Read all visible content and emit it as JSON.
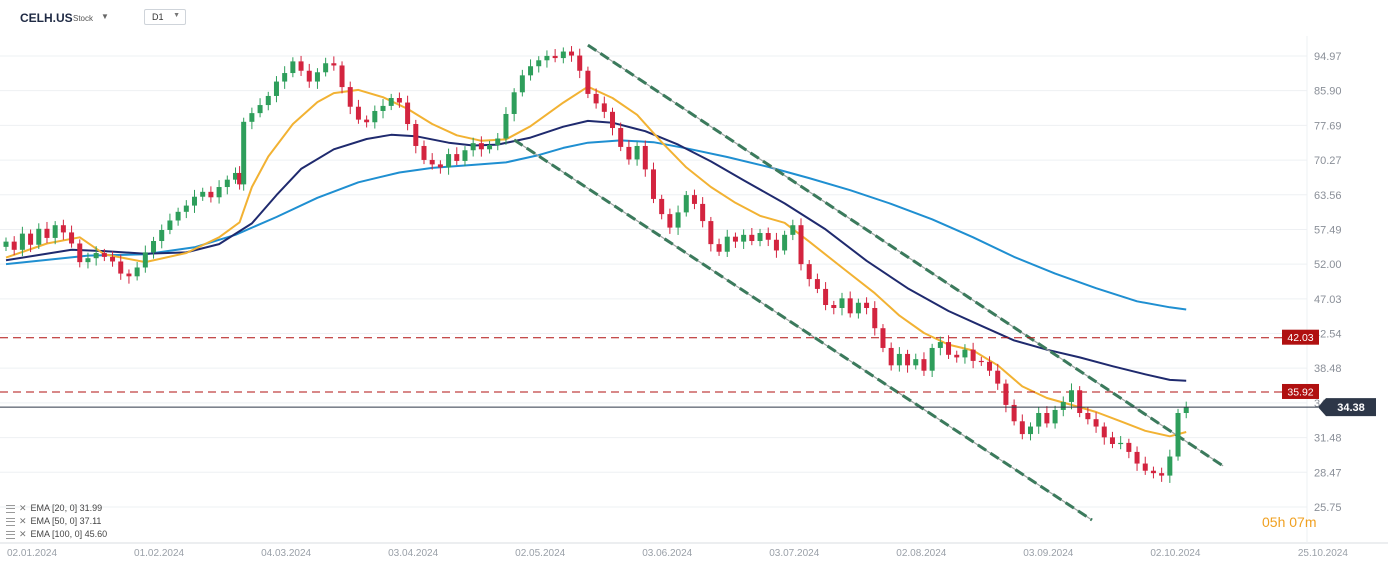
{
  "header": {
    "symbol": "CELH.US",
    "type": "Stock",
    "timeframe": "D1"
  },
  "countdown": {
    "hours": "05",
    "h_unit": "h",
    "minutes": "07",
    "m_unit": "m"
  },
  "indicators": [
    {
      "label": "EMA [20, 0] 31.99",
      "color": "#f2b233"
    },
    {
      "label": "EMA [50, 0] 37.11",
      "color": "#1f2a6e"
    },
    {
      "label": "EMA [100, 0] 45.60",
      "color": "#1f8fd1"
    }
  ],
  "chart_data": {
    "type": "candlestick",
    "y_ticks": [
      "94.97",
      "85.90",
      "77.69",
      "70.27",
      "63.56",
      "57.49",
      "52.00",
      "47.03",
      "42.54",
      "38.48",
      "34.81",
      "31.48",
      "28.47",
      "25.75"
    ],
    "x_ticks": [
      "02.01.2024",
      "01.02.2024",
      "04.03.2024",
      "03.04.2024",
      "02.05.2024",
      "03.06.2024",
      "03.07.2024",
      "02.08.2024",
      "03.09.2024",
      "02.10.2024",
      "25.10.2024"
    ],
    "current_price": "34.38",
    "price_level_lines": [
      "42.03",
      "35.92"
    ],
    "colors": {
      "up": "#2e9e5b",
      "down": "#d3243f",
      "level": "#b01010",
      "last_price_bg": "#2d3748"
    },
    "closes": [
      [
        0,
        55.5
      ],
      [
        2,
        54.2
      ],
      [
        4,
        56.8
      ],
      [
        6,
        55.0
      ],
      [
        8,
        57.6
      ],
      [
        10,
        56.1
      ],
      [
        12,
        58.2
      ],
      [
        14,
        57.0
      ],
      [
        16,
        55.2
      ],
      [
        18,
        52.3
      ],
      [
        20,
        52.9
      ],
      [
        22,
        53.7
      ],
      [
        24,
        53.1
      ],
      [
        26,
        52.4
      ],
      [
        28,
        50.6
      ],
      [
        30,
        50.2
      ],
      [
        32,
        51.5
      ],
      [
        34,
        53.8
      ],
      [
        36,
        55.6
      ],
      [
        38,
        57.4
      ],
      [
        40,
        59.0
      ],
      [
        42,
        60.5
      ],
      [
        44,
        61.6
      ],
      [
        46,
        63.2
      ],
      [
        48,
        64.1
      ],
      [
        50,
        63.1
      ],
      [
        52,
        65.0
      ],
      [
        54,
        66.4
      ],
      [
        56,
        67.7
      ],
      [
        57,
        65.5
      ],
      [
        58,
        78.5
      ],
      [
        60,
        80.5
      ],
      [
        62,
        82.4
      ],
      [
        64,
        84.6
      ],
      [
        66,
        88.2
      ],
      [
        68,
        90.4
      ],
      [
        70,
        93.5
      ],
      [
        72,
        91.0
      ],
      [
        74,
        88.2
      ],
      [
        76,
        90.6
      ],
      [
        78,
        93.0
      ],
      [
        80,
        92.4
      ],
      [
        82,
        86.8
      ],
      [
        84,
        82.0
      ],
      [
        86,
        79.0
      ],
      [
        88,
        78.4
      ],
      [
        90,
        81.0
      ],
      [
        92,
        82.2
      ],
      [
        94,
        84.1
      ],
      [
        96,
        83.0
      ],
      [
        98,
        78.0
      ],
      [
        100,
        73.2
      ],
      [
        102,
        70.3
      ],
      [
        104,
        69.4
      ],
      [
        106,
        68.8
      ],
      [
        108,
        71.5
      ],
      [
        110,
        70.1
      ],
      [
        112,
        72.3
      ],
      [
        114,
        73.8
      ],
      [
        116,
        72.5
      ],
      [
        118,
        73.4
      ],
      [
        120,
        74.8
      ],
      [
        122,
        80.3
      ],
      [
        124,
        85.5
      ],
      [
        126,
        89.8
      ],
      [
        128,
        92.2
      ],
      [
        130,
        93.8
      ],
      [
        132,
        95.0
      ],
      [
        134,
        94.4
      ],
      [
        136,
        96.2
      ],
      [
        138,
        95.1
      ],
      [
        140,
        91.0
      ],
      [
        142,
        85.1
      ],
      [
        144,
        82.8
      ],
      [
        146,
        80.8
      ],
      [
        148,
        77.1
      ],
      [
        150,
        73.0
      ],
      [
        152,
        70.4
      ],
      [
        154,
        73.2
      ],
      [
        156,
        68.4
      ],
      [
        158,
        62.8
      ],
      [
        160,
        60.1
      ],
      [
        162,
        57.8
      ],
      [
        164,
        60.4
      ],
      [
        166,
        63.5
      ],
      [
        168,
        61.9
      ],
      [
        170,
        58.9
      ],
      [
        172,
        55.1
      ],
      [
        174,
        53.9
      ],
      [
        176,
        56.3
      ],
      [
        178,
        55.5
      ],
      [
        180,
        56.6
      ],
      [
        182,
        55.6
      ],
      [
        184,
        56.9
      ],
      [
        186,
        55.8
      ],
      [
        188,
        54.1
      ],
      [
        190,
        56.6
      ],
      [
        192,
        58.2
      ],
      [
        194,
        52.0
      ],
      [
        196,
        49.8
      ],
      [
        198,
        48.4
      ],
      [
        200,
        46.2
      ],
      [
        202,
        45.8
      ],
      [
        204,
        47.1
      ],
      [
        206,
        45.1
      ],
      [
        208,
        46.5
      ],
      [
        210,
        45.8
      ],
      [
        212,
        43.2
      ],
      [
        214,
        40.8
      ],
      [
        216,
        38.8
      ],
      [
        218,
        40.1
      ],
      [
        220,
        38.8
      ],
      [
        222,
        39.5
      ],
      [
        224,
        38.2
      ],
      [
        226,
        40.8
      ],
      [
        228,
        41.5
      ],
      [
        230,
        40.0
      ],
      [
        232,
        39.7
      ],
      [
        234,
        40.6
      ],
      [
        236,
        39.3
      ],
      [
        238,
        39.2
      ],
      [
        240,
        38.2
      ],
      [
        242,
        36.8
      ],
      [
        244,
        34.6
      ],
      [
        246,
        33.0
      ],
      [
        248,
        31.8
      ],
      [
        250,
        32.5
      ],
      [
        252,
        33.8
      ],
      [
        254,
        32.8
      ],
      [
        256,
        34.1
      ],
      [
        258,
        34.9
      ],
      [
        260,
        36.1
      ],
      [
        262,
        33.8
      ],
      [
        264,
        33.2
      ],
      [
        266,
        32.5
      ],
      [
        268,
        31.5
      ],
      [
        270,
        30.9
      ],
      [
        272,
        31.0
      ],
      [
        274,
        30.2
      ],
      [
        276,
        29.2
      ],
      [
        278,
        28.6
      ],
      [
        280,
        28.4
      ],
      [
        282,
        28.2
      ],
      [
        284,
        29.8
      ],
      [
        286,
        33.8
      ],
      [
        288,
        34.38
      ]
    ],
    "ema20": [
      [
        0,
        53.0
      ],
      [
        10,
        55.2
      ],
      [
        18,
        56.2
      ],
      [
        24,
        53.5
      ],
      [
        34,
        52.3
      ],
      [
        44,
        53.7
      ],
      [
        52,
        56.2
      ],
      [
        57,
        58.7
      ],
      [
        60,
        65.0
      ],
      [
        64,
        71.0
      ],
      [
        70,
        78.0
      ],
      [
        76,
        83.1
      ],
      [
        80,
        85.3
      ],
      [
        86,
        86.1
      ],
      [
        92,
        84.3
      ],
      [
        98,
        81.5
      ],
      [
        104,
        78.0
      ],
      [
        110,
        75.5
      ],
      [
        116,
        74.3
      ],
      [
        122,
        74.6
      ],
      [
        128,
        77.5
      ],
      [
        136,
        83.0
      ],
      [
        142,
        86.9
      ],
      [
        148,
        84.1
      ],
      [
        154,
        80.1
      ],
      [
        160,
        74.0
      ],
      [
        166,
        68.8
      ],
      [
        172,
        65.0
      ],
      [
        178,
        62.1
      ],
      [
        184,
        59.8
      ],
      [
        190,
        58.6
      ],
      [
        196,
        55.5
      ],
      [
        204,
        51.5
      ],
      [
        212,
        47.8
      ],
      [
        218,
        44.8
      ],
      [
        224,
        42.6
      ],
      [
        230,
        41.2
      ],
      [
        236,
        40.5
      ],
      [
        242,
        38.8
      ],
      [
        248,
        36.5
      ],
      [
        254,
        35.3
      ],
      [
        260,
        34.6
      ],
      [
        266,
        33.9
      ],
      [
        272,
        33.0
      ],
      [
        278,
        32.1
      ],
      [
        284,
        31.6
      ],
      [
        288,
        31.99
      ]
    ],
    "ema50": [
      [
        0,
        52.6
      ],
      [
        16,
        54.2
      ],
      [
        24,
        54.0
      ],
      [
        34,
        53.6
      ],
      [
        44,
        53.8
      ],
      [
        52,
        55.1
      ],
      [
        60,
        58.5
      ],
      [
        66,
        63.5
      ],
      [
        72,
        68.5
      ],
      [
        80,
        72.5
      ],
      [
        88,
        74.7
      ],
      [
        94,
        75.6
      ],
      [
        100,
        75.3
      ],
      [
        108,
        73.9
      ],
      [
        114,
        73.3
      ],
      [
        120,
        73.5
      ],
      [
        128,
        75.0
      ],
      [
        136,
        77.4
      ],
      [
        142,
        78.7
      ],
      [
        148,
        78.3
      ],
      [
        156,
        76.4
      ],
      [
        164,
        73.5
      ],
      [
        172,
        70.0
      ],
      [
        180,
        66.3
      ],
      [
        190,
        62.0
      ],
      [
        200,
        57.5
      ],
      [
        210,
        52.5
      ],
      [
        220,
        48.5
      ],
      [
        230,
        45.4
      ],
      [
        238,
        43.5
      ],
      [
        246,
        41.7
      ],
      [
        254,
        40.6
      ],
      [
        262,
        39.7
      ],
      [
        270,
        38.7
      ],
      [
        278,
        37.8
      ],
      [
        284,
        37.2
      ],
      [
        288,
        37.11
      ]
    ],
    "ema100": [
      [
        0,
        52.0
      ],
      [
        20,
        53.3
      ],
      [
        34,
        53.5
      ],
      [
        46,
        54.6
      ],
      [
        56,
        56.6
      ],
      [
        66,
        59.6
      ],
      [
        76,
        63.0
      ],
      [
        86,
        65.9
      ],
      [
        96,
        67.8
      ],
      [
        104,
        68.7
      ],
      [
        114,
        69.3
      ],
      [
        122,
        69.8
      ],
      [
        130,
        71.3
      ],
      [
        136,
        72.8
      ],
      [
        142,
        73.9
      ],
      [
        150,
        74.4
      ],
      [
        158,
        74.0
      ],
      [
        166,
        72.7
      ],
      [
        176,
        70.9
      ],
      [
        186,
        68.9
      ],
      [
        196,
        66.7
      ],
      [
        206,
        64.4
      ],
      [
        216,
        61.9
      ],
      [
        226,
        59.2
      ],
      [
        236,
        56.2
      ],
      [
        246,
        53.1
      ],
      [
        256,
        50.6
      ],
      [
        266,
        48.5
      ],
      [
        276,
        46.7
      ],
      [
        284,
        45.9
      ],
      [
        288,
        45.6
      ]
    ],
    "channel_lines": [
      {
        "from": [
          142,
          98.0
        ],
        "to": [
          297,
          29.0
        ]
      },
      {
        "from": [
          124,
          74.5
        ],
        "to": [
          265,
          24.8
        ]
      }
    ]
  }
}
